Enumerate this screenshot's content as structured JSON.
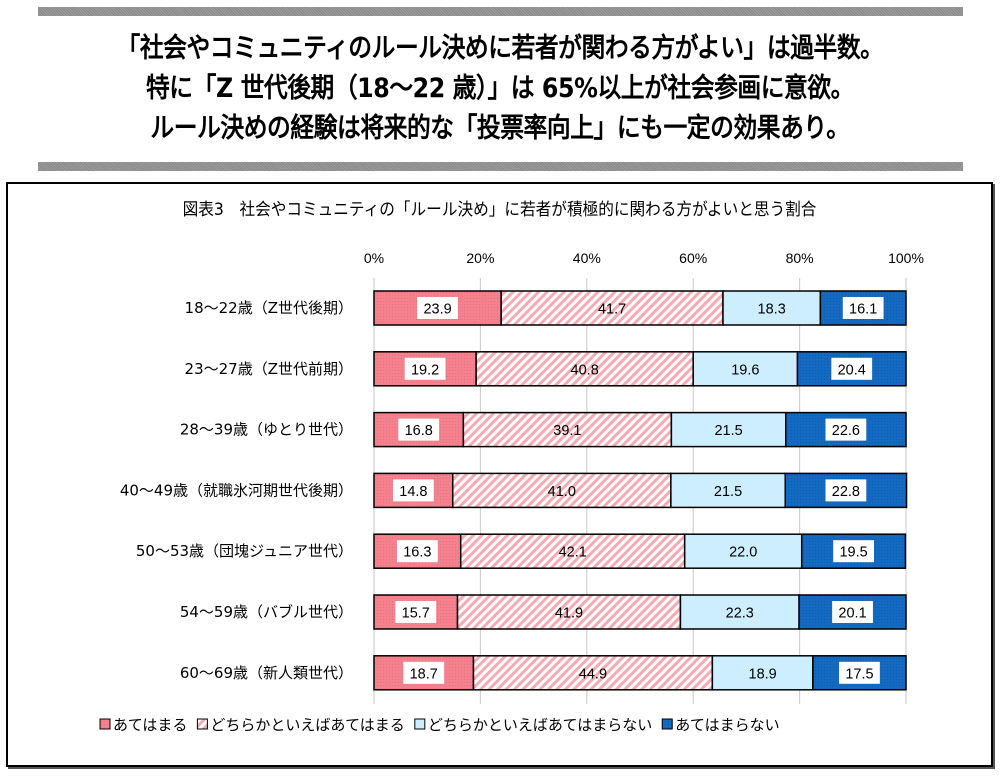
{
  "headline": {
    "line1": "「社会やコミュニティのルール決めに若者が関わる方がよい」は過半数。",
    "line2": "特に「Z 世代後期（18～22 歳）」は 65%以上が社会参画に意欲。",
    "line3": "ルール決めの経験は将来的な「投票率向上」にも一定の効果あり。"
  },
  "colors": {
    "strongly_agree": "#F4828E",
    "somewhat_agree_stripe": "#F6AAB3",
    "somewhat_disagree": "#CCEEFF",
    "strongly_disagree": "#1469C0",
    "gridline": "#d0d0d0",
    "rule": "#959595"
  },
  "chart_data": {
    "type": "bar",
    "orientation": "horizontal",
    "stacked": true,
    "title": "図表3　社会やコミュニティの「ルール決め」に若者が積極的に関わる方がよいと思う割合",
    "xlabel": "",
    "ylabel": "",
    "xlim": [
      0,
      100
    ],
    "x_ticks": [
      "0%",
      "20%",
      "40%",
      "60%",
      "80%",
      "100%"
    ],
    "grid": true,
    "legend_position": "bottom",
    "categories": [
      "18～22歳（Z世代後期）",
      "23～27歳（Z世代前期）",
      "28～39歳（ゆとり世代）",
      "40～49歳（就職氷河期世代後期）",
      "50～53歳（団塊ジュニア世代）",
      "54～59歳（バブル世代）",
      "60～69歳（新人類世代）"
    ],
    "series": [
      {
        "name": "あてはまる",
        "values": [
          23.9,
          19.2,
          16.8,
          14.8,
          16.3,
          15.7,
          18.7
        ]
      },
      {
        "name": "どちらかといえばあてはまる",
        "values": [
          41.7,
          40.8,
          39.1,
          41.0,
          42.1,
          41.9,
          44.9
        ]
      },
      {
        "name": "どちらかといえばあてはまらない",
        "values": [
          18.3,
          19.6,
          21.5,
          21.5,
          22.0,
          22.3,
          18.9
        ]
      },
      {
        "name": "あてはまらない",
        "values": [
          16.1,
          20.4,
          22.6,
          22.8,
          19.5,
          20.1,
          17.5
        ]
      }
    ]
  }
}
